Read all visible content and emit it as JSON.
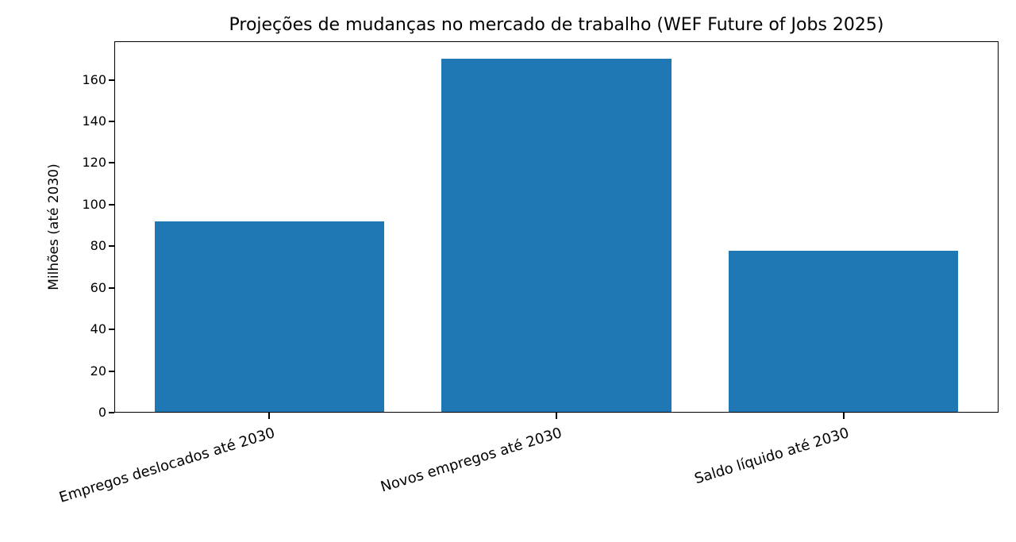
{
  "chart_data": {
    "type": "bar",
    "title": "Projeções de mudanças no mercado de trabalho (WEF Future of Jobs 2025)",
    "xlabel": "",
    "ylabel": "Milhões (até 2030)",
    "categories": [
      "Empregos deslocados até 2030",
      "Novos empregos até 2030",
      "Saldo líquido até 2030"
    ],
    "values": [
      92,
      170,
      78
    ],
    "yticks": [
      0,
      20,
      40,
      60,
      80,
      100,
      120,
      140,
      160
    ],
    "ylim": [
      0,
      178.5
    ],
    "grid": false,
    "legend": "none",
    "bar_color": "#1f77b4",
    "axis_color": "#000000",
    "background_color": "#ffffff",
    "x_tick_rotation_deg": 17
  }
}
